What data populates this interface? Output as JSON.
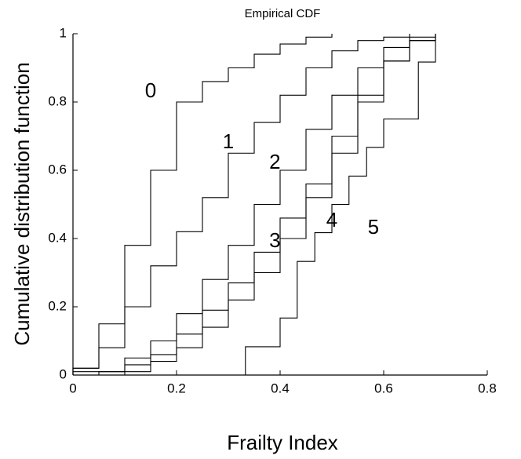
{
  "chart_data": {
    "type": "step",
    "title": "Empirical CDF",
    "x_label": "Frailty Index",
    "y_label": "Cumulative distribution function",
    "xlim": [
      0,
      0.8
    ],
    "ylim": [
      0,
      1
    ],
    "xticks": [
      0,
      0.2,
      0.4,
      0.6,
      0.8
    ],
    "yticks": [
      0,
      0.2,
      0.4,
      0.6,
      0.8,
      1
    ],
    "color": "#000000",
    "series": [
      {
        "name": "0",
        "x": [
          0,
          0.05,
          0.1,
          0.15,
          0.2,
          0.25,
          0.3,
          0.35,
          0.4,
          0.45,
          0.5
        ],
        "values": [
          0.02,
          0.15,
          0.38,
          0.6,
          0.8,
          0.86,
          0.9,
          0.94,
          0.97,
          0.99,
          1
        ]
      },
      {
        "name": "1",
        "x": [
          0,
          0.05,
          0.1,
          0.15,
          0.2,
          0.25,
          0.3,
          0.35,
          0.4,
          0.45,
          0.5,
          0.55,
          0.6,
          0.65
        ],
        "values": [
          0.02,
          0.08,
          0.2,
          0.32,
          0.42,
          0.52,
          0.65,
          0.74,
          0.82,
          0.9,
          0.95,
          0.98,
          0.99,
          1
        ]
      },
      {
        "name": "2",
        "x": [
          0,
          0.1,
          0.15,
          0.2,
          0.25,
          0.3,
          0.35,
          0.4,
          0.45,
          0.5,
          0.55,
          0.6,
          0.65,
          0.7
        ],
        "values": [
          0.01,
          0.05,
          0.1,
          0.18,
          0.28,
          0.38,
          0.5,
          0.6,
          0.72,
          0.82,
          0.9,
          0.96,
          0.99,
          1
        ]
      },
      {
        "name": "3",
        "x": [
          0.05,
          0.1,
          0.15,
          0.2,
          0.25,
          0.3,
          0.35,
          0.4,
          0.45,
          0.5,
          0.55,
          0.6,
          0.65,
          0.7
        ],
        "values": [
          0.01,
          0.03,
          0.06,
          0.12,
          0.19,
          0.27,
          0.36,
          0.46,
          0.56,
          0.7,
          0.82,
          0.92,
          0.98,
          1
        ]
      },
      {
        "name": "4",
        "x": [
          0.1,
          0.15,
          0.2,
          0.25,
          0.3,
          0.35,
          0.4,
          0.45,
          0.5,
          0.55,
          0.6,
          0.65,
          0.7
        ],
        "values": [
          0.01,
          0.04,
          0.08,
          0.14,
          0.22,
          0.3,
          0.4,
          0.52,
          0.65,
          0.8,
          0.92,
          0.98,
          1
        ]
      },
      {
        "name": "5",
        "x": [
          0.333,
          0.4,
          0.433,
          0.467,
          0.5,
          0.533,
          0.567,
          0.6,
          0.667,
          0.7
        ],
        "values": [
          0.083,
          0.167,
          0.333,
          0.417,
          0.5,
          0.583,
          0.667,
          0.75,
          0.917,
          1
        ]
      }
    ],
    "annotations": [
      {
        "text": "0",
        "x": 0.15,
        "y": 0.83
      },
      {
        "text": "1",
        "x": 0.3,
        "y": 0.68
      },
      {
        "text": "2",
        "x": 0.39,
        "y": 0.62
      },
      {
        "text": "3",
        "x": 0.39,
        "y": 0.39
      },
      {
        "text": "4",
        "x": 0.5,
        "y": 0.45
      },
      {
        "text": "5",
        "x": 0.58,
        "y": 0.43
      }
    ]
  }
}
